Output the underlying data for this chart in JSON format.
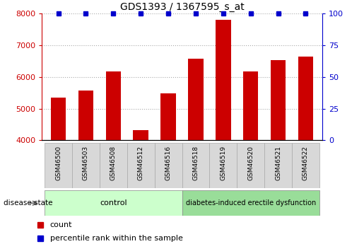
{
  "title": "GDS1393 / 1367595_s_at",
  "samples": [
    "GSM46500",
    "GSM46503",
    "GSM46508",
    "GSM46512",
    "GSM46516",
    "GSM46518",
    "GSM46519",
    "GSM46520",
    "GSM46521",
    "GSM46522"
  ],
  "counts": [
    5350,
    5580,
    6180,
    4320,
    5490,
    6580,
    7800,
    6180,
    6520,
    6640
  ],
  "percentiles": [
    100,
    100,
    100,
    100,
    100,
    100,
    100,
    100,
    100,
    100
  ],
  "ylim_left": [
    4000,
    8000
  ],
  "ylim_right": [
    0,
    100
  ],
  "yticks_left": [
    4000,
    5000,
    6000,
    7000,
    8000
  ],
  "yticks_right": [
    0,
    25,
    50,
    75,
    100
  ],
  "bar_color": "#cc0000",
  "percentile_color": "#0000cc",
  "control_indices": [
    0,
    1,
    2,
    3,
    4
  ],
  "disease_indices": [
    5,
    6,
    7,
    8,
    9
  ],
  "control_label": "control",
  "disease_label": "diabetes-induced erectile dysfunction",
  "group_label": "disease state",
  "control_color": "#ccffcc",
  "disease_color": "#99dd99",
  "legend_count_label": "count",
  "legend_percentile_label": "percentile rank within the sample",
  "background_color": "#ffffff",
  "tick_label_area_color": "#d8d8d8"
}
